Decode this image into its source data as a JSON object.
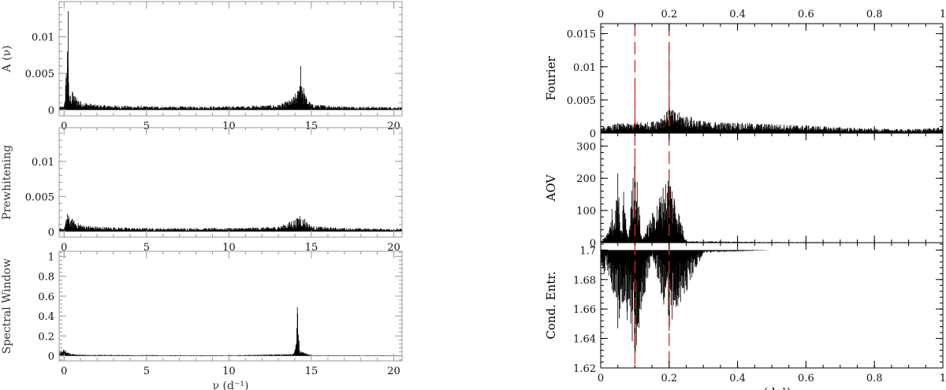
{
  "chart_data": [
    {
      "id": "left1",
      "type": "line",
      "ylabel": "A (ν)",
      "xlabel": "",
      "xlim": [
        -0.3,
        20.5
      ],
      "ylim": [
        -0.0008,
        0.0148
      ],
      "xticks": [
        0,
        5,
        10,
        15,
        20
      ],
      "yticks": [
        0,
        0.005,
        0.01
      ],
      "yticklabels": [
        "0",
        "0.005",
        "0.01"
      ],
      "series": [
        {
          "x": [
            0,
            0.2,
            0.25,
            0.3,
            0.5,
            1,
            2,
            5,
            10,
            13,
            13.8,
            14.3,
            14.35,
            14.6,
            15,
            17,
            20.5
          ],
          "y": [
            0.0005,
            0.008,
            0.0135,
            0.002,
            0.0025,
            0.0012,
            0.0007,
            0.0005,
            0.0005,
            0.0007,
            0.0015,
            0.0032,
            0.006,
            0.0022,
            0.0008,
            0.0005,
            0.0004
          ]
        }
      ]
    },
    {
      "id": "left2",
      "type": "line",
      "ylabel": "Prewhitening",
      "xlabel": "",
      "xlim": [
        -0.3,
        20.5
      ],
      "ylim": [
        -0.0008,
        0.0148
      ],
      "xticks": [
        0,
        5,
        10,
        15,
        20
      ],
      "yticks": [
        0,
        0.005,
        0.01
      ],
      "yticklabels": [
        "0",
        "0.005",
        "0.01"
      ],
      "series": [
        {
          "x": [
            0,
            0.2,
            0.5,
            1,
            2,
            5,
            10,
            13,
            13.8,
            14.3,
            14.6,
            15,
            17,
            20.5
          ],
          "y": [
            0.0005,
            0.0025,
            0.0018,
            0.001,
            0.0007,
            0.0005,
            0.0005,
            0.0007,
            0.0015,
            0.0022,
            0.0018,
            0.0008,
            0.0005,
            0.0004
          ]
        }
      ]
    },
    {
      "id": "left3",
      "type": "line",
      "ylabel": "Spectral  Window",
      "xlabel": "ν (d⁻¹)",
      "xlim": [
        -0.3,
        20.5
      ],
      "ylim": [
        -0.05,
        1.05
      ],
      "xticks": [
        0,
        5,
        10,
        15,
        20
      ],
      "yticks": [
        0,
        0.2,
        0.4,
        0.6,
        0.8,
        1
      ],
      "yticklabels": [
        "0",
        "0.2",
        "0.4",
        "0.6",
        "0.8",
        "1"
      ],
      "series": [
        {
          "x": [
            0,
            0.1,
            0.5,
            1,
            5,
            10,
            13.9,
            14.1,
            14.15,
            14.3,
            15,
            20.5
          ],
          "y": [
            0.06,
            0.05,
            0.02,
            0.012,
            0.008,
            0.006,
            0.02,
            0.13,
            0.49,
            0.05,
            0.006,
            0.005
          ]
        }
      ]
    },
    {
      "id": "right1",
      "type": "line",
      "ylabel": "Fourier",
      "xlabel": "",
      "xlim": [
        0,
        1
      ],
      "ylim": [
        0,
        0.0165
      ],
      "xticks": [
        0,
        0.2,
        0.4,
        0.6,
        0.8,
        1
      ],
      "xticklabels_top": [
        "0",
        "0.2",
        "0.4",
        "0.6",
        "0.8",
        "1"
      ],
      "yticks": [
        0,
        0.005,
        0.01,
        0.015
      ],
      "yticklabels": [
        "0",
        "0.005",
        "0.01",
        "0.015"
      ],
      "series": [
        {
          "x": [
            0,
            0.05,
            0.099,
            0.1,
            0.101,
            0.15,
            0.199,
            0.2,
            0.201,
            0.21,
            0.3,
            0.4,
            0.5,
            0.6,
            0.7,
            0.8,
            0.9,
            1
          ],
          "y": [
            0.0008,
            0.0015,
            0.0015,
            0.008,
            0.0018,
            0.0017,
            0.0035,
            0.0133,
            0.004,
            0.0035,
            0.0018,
            0.0016,
            0.0014,
            0.0012,
            0.0009,
            0.0007,
            0.0006,
            0.0009
          ]
        }
      ],
      "markers_x": [
        0.1,
        0.2
      ]
    },
    {
      "id": "right2",
      "type": "line",
      "ylabel": "AOV",
      "xlabel": "",
      "xlim": [
        0,
        1
      ],
      "ylim": [
        0,
        340
      ],
      "xticks": [
        0,
        0.2,
        0.4,
        0.6,
        0.8,
        1
      ],
      "yticks": [
        0,
        100,
        200,
        300
      ],
      "yticklabels": [
        "0",
        "100",
        "200",
        "300"
      ],
      "series": [
        {
          "x": [
            0,
            0.02,
            0.025,
            0.033,
            0.04,
            0.05,
            0.06,
            0.067,
            0.08,
            0.1,
            0.12,
            0.2,
            0.25,
            0.5,
            1
          ],
          "y": [
            5,
            30,
            40,
            105,
            60,
            215,
            15,
            158,
            10,
            293,
            10,
            225,
            5,
            2,
            1
          ]
        }
      ],
      "markers_x": [
        0.1,
        0.2
      ]
    },
    {
      "id": "right3",
      "type": "line",
      "ylabel": "Cond. Entr.",
      "xlabel": "ν (d⁻¹)",
      "xlim": [
        0,
        1
      ],
      "ylim": [
        1.62,
        1.705
      ],
      "xticks": [
        0,
        0.2,
        0.4,
        0.6,
        0.8,
        1
      ],
      "xticklabels": [
        "0",
        "0.2",
        "0.4",
        "0.6",
        "0.8",
        "1"
      ],
      "yticks": [
        1.62,
        1.64,
        1.66,
        1.68,
        1.7
      ],
      "yticklabels": [
        "1.62",
        "1.64",
        "1.66",
        "1.68",
        "1.7"
      ],
      "series": [
        {
          "x": [
            0,
            0.01,
            0.02,
            0.033,
            0.05,
            0.067,
            0.1,
            0.15,
            0.2,
            0.3,
            0.5,
            1
          ],
          "y": [
            1.69,
            1.684,
            1.686,
            1.673,
            1.647,
            1.665,
            1.625,
            1.697,
            1.645,
            1.698,
            1.7,
            1.7
          ]
        }
      ],
      "markers_x": [
        0.1,
        0.2
      ]
    }
  ]
}
